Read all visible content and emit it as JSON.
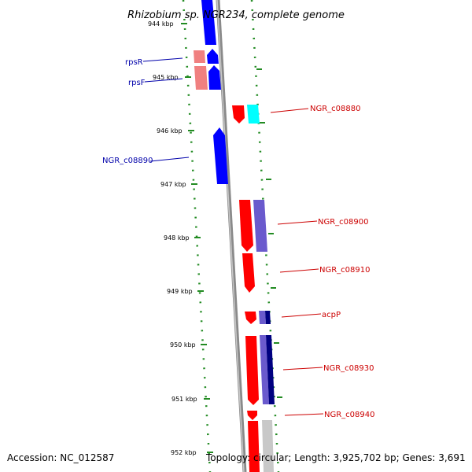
{
  "title": "Rhizobium sp. NGR234, complete genome",
  "footer": {
    "accession": "Accession: NC_012587",
    "topology": "Topology: circular; Length: 3,925,702 bp; Genes: 3,691"
  },
  "colors": {
    "backbone": "#888888",
    "tick_green": "#228B22",
    "forward_red": "#ff0000",
    "reverse_blue": "#0000ff",
    "slate_blue": "#6a5acd",
    "navy": "#000080",
    "pink": "#f08080",
    "cyan": "#00ffff",
    "gray": "#c8c8c8",
    "label_red": "#cc0000",
    "label_blue": "#0000aa"
  },
  "scale": {
    "ticks": [
      "944 kbp",
      "945 kbp",
      "946 kbp",
      "947 kbp",
      "948 kbp",
      "949 kbp",
      "950 kbp",
      "951 kbp",
      "952 kbp"
    ]
  },
  "labels": [
    {
      "text": "rpsR",
      "color": "blue"
    },
    {
      "text": "rpsF",
      "color": "blue"
    },
    {
      "text": "NGR_c08880",
      "color": "red"
    },
    {
      "text": "NGR_c08890",
      "color": "blue"
    },
    {
      "text": "NGR_c08900",
      "color": "red"
    },
    {
      "text": "NGR_c08910",
      "color": "red"
    },
    {
      "text": "acpP",
      "color": "red"
    },
    {
      "text": "NGR_c08930",
      "color": "red"
    },
    {
      "text": "NGR_c08940",
      "color": "red"
    }
  ]
}
